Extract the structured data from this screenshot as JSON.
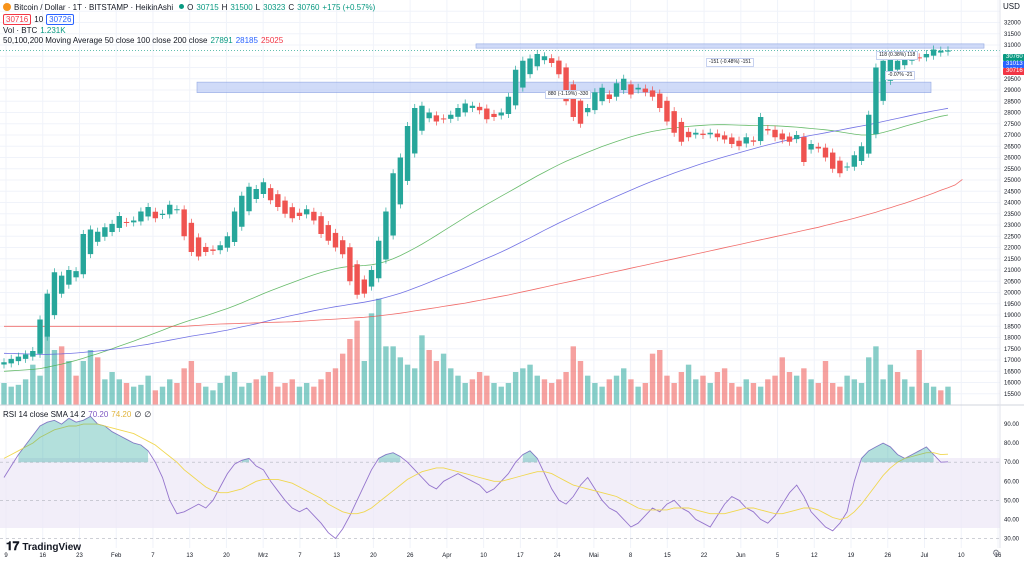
{
  "legend": {
    "symbol": "Bitcoin / Dollar · 1T · BITSTAMP · HeikinAshi",
    "open_label": "O",
    "open": "30715",
    "high_label": "H",
    "high": "31500",
    "low_label": "L",
    "low": "30323",
    "close_label": "C",
    "close": "30760",
    "change": "+175 (+0.57%)",
    "bid": "30716",
    "spread": "10",
    "ask": "30726",
    "vol_label": "Vol · BTC",
    "vol_value": "1.231K",
    "ma_label": "50,100,200 Moving Average 50 close 100 close 200 close",
    "ma50": "27891",
    "ma100": "28185",
    "ma200": "25025",
    "rsi_label": "RSI 14 close SMA 14 2",
    "rsi_value": "70.20",
    "rsi_sma": "74.20",
    "ma_sym1": "∅",
    "ma_sym2": "∅"
  },
  "currency": "USD",
  "brand": "TradingView",
  "price_tags": {
    "last": "30760",
    "a": "31013",
    "b": "30716"
  },
  "measures": {
    "m1": "-151 (-0.48%) -151",
    "m2": "880 (-1.19%) -330",
    "m3": "118 (0.38%) 118",
    "m4": "-0.07% -21"
  },
  "colors": {
    "up": "#26a69a",
    "down": "#ef5350",
    "ma50": "#4caf50",
    "ma100": "#5b5bdf",
    "ma200": "#ef5350",
    "rsi": "#9575cd",
    "rsi_sma": "#f0d750",
    "zone": "#b8c9f5"
  },
  "chart_data": [
    {
      "type": "candlestick",
      "title": "Bitcoin / Dollar · 1T · BITSTAMP · HeikinAshi",
      "xlabel": "",
      "ylabel": "USD",
      "x_ticks": [
        "9",
        "16",
        "23",
        "Feb",
        "7",
        "13",
        "20",
        "Mrz",
        "7",
        "13",
        "20",
        "26",
        "Apr",
        "10",
        "17",
        "24",
        "Mai",
        "8",
        "15",
        "22",
        "Jun",
        "5",
        "12",
        "19",
        "26",
        "Jul",
        "10",
        "16"
      ],
      "y_ticks": [
        15500,
        16000,
        16500,
        17000,
        17500,
        18000,
        18500,
        19000,
        19500,
        20000,
        20500,
        21000,
        21500,
        22000,
        22500,
        23000,
        23500,
        24000,
        24500,
        25000,
        25500,
        26000,
        26500,
        27000,
        27500,
        28000,
        28500,
        29000,
        29500,
        30000,
        30500,
        31000,
        31500,
        32000,
        32500
      ],
      "ylim": [
        15000,
        33000
      ],
      "close": [
        16900,
        17050,
        17150,
        17250,
        17400,
        18800,
        19950,
        20900,
        20750,
        21000,
        20950,
        22600,
        22800,
        22700,
        22900,
        23050,
        23400,
        23100,
        23200,
        23600,
        23800,
        23300,
        23500,
        23900,
        23700,
        22500,
        21800,
        21600,
        21800,
        21850,
        22100,
        22500,
        23600,
        24300,
        24700,
        24600,
        24900,
        24100,
        23800,
        23500,
        23300,
        23400,
        23700,
        23200,
        22600,
        22300,
        22000,
        21700,
        20500,
        19900,
        19950,
        21000,
        22300,
        23600,
        25300,
        26000,
        27400,
        28200,
        28300,
        28000,
        27600,
        27700,
        27900,
        28200,
        28400,
        28300,
        28100,
        27700,
        27800,
        28000,
        28700,
        29900,
        30300,
        30400,
        30600,
        30500,
        30200,
        29700,
        28500,
        27800,
        27500,
        28200,
        28900,
        29100,
        28600,
        29300,
        29500,
        28800,
        29100,
        28900,
        28700,
        28200,
        27600,
        27100,
        26700,
        26900,
        27100,
        27000,
        27100,
        26900,
        26800,
        26600,
        26500,
        26900,
        26700,
        27800,
        27200,
        26900,
        26800,
        26700,
        27000,
        25800,
        26600,
        26400,
        26000,
        25500,
        25300,
        25600,
        26100,
        26500,
        27900,
        30000,
        30300,
        30400,
        30300,
        30500,
        30600,
        30450,
        30600,
        30800,
        30750,
        30760
      ],
      "volume": [
        0.6,
        0.5,
        0.55,
        0.7,
        1.1,
        0.8,
        1.9,
        1.5,
        1.6,
        1.2,
        0.8,
        1.2,
        1.5,
        1.3,
        0.7,
        0.9,
        0.7,
        0.6,
        0.5,
        0.55,
        0.8,
        0.4,
        0.5,
        0.7,
        0.6,
        1.0,
        1.2,
        0.6,
        0.5,
        0.4,
        0.6,
        0.8,
        0.9,
        0.5,
        0.6,
        0.7,
        0.8,
        0.9,
        0.5,
        0.6,
        0.7,
        0.5,
        0.6,
        0.5,
        0.7,
        0.9,
        1.0,
        1.4,
        1.8,
        2.3,
        1.2,
        2.5,
        2.9,
        1.6,
        1.6,
        1.3,
        1.1,
        1.0,
        1.9,
        1.5,
        1.2,
        1.4,
        1.0,
        0.8,
        0.6,
        0.7,
        0.9,
        0.8,
        0.6,
        0.5,
        0.6,
        0.9,
        1.0,
        1.1,
        0.8,
        0.7,
        0.6,
        0.7,
        0.9,
        1.6,
        1.2,
        0.8,
        0.6,
        0.5,
        0.7,
        0.8,
        1.0,
        0.7,
        0.5,
        0.6,
        1.4,
        1.5,
        0.8,
        0.6,
        0.9,
        1.1,
        0.7,
        0.8,
        0.6,
        0.9,
        1.0,
        0.6,
        0.5,
        0.7,
        0.6,
        0.5,
        0.7,
        0.8,
        1.3,
        0.9,
        0.8,
        1.0,
        0.7,
        0.6,
        1.2,
        0.6,
        0.5,
        0.8,
        0.7,
        0.6,
        1.3,
        1.6,
        0.7,
        1.1,
        0.9,
        0.7,
        0.5,
        1.5,
        0.6,
        0.5,
        0.4,
        0.5
      ],
      "ma50": [
        16500,
        16520,
        16540,
        16560,
        16580,
        16620,
        16680,
        16750,
        16820,
        16900,
        16980,
        17080,
        17180,
        17280,
        17390,
        17500,
        17620,
        17730,
        17840,
        17960,
        18080,
        18200,
        18320,
        18450,
        18570,
        18680,
        18780,
        18870,
        18970,
        19070,
        19180,
        19290,
        19410,
        19540,
        19680,
        19810,
        19950,
        20080,
        20200,
        20320,
        20440,
        20560,
        20680,
        20790,
        20890,
        20980,
        21060,
        21120,
        21160,
        21180,
        21200,
        21230,
        21290,
        21380,
        21500,
        21640,
        21800,
        21970,
        22150,
        22340,
        22540,
        22740,
        22940,
        23140,
        23340,
        23540,
        23730,
        23920,
        24100,
        24280,
        24460,
        24640,
        24820,
        25000,
        25180,
        25350,
        25520,
        25680,
        25830,
        25970,
        26100,
        26230,
        26360,
        26490,
        26600,
        26710,
        26820,
        26920,
        27010,
        27090,
        27160,
        27220,
        27270,
        27310,
        27350,
        27380,
        27410,
        27430,
        27450,
        27460,
        27460,
        27450,
        27440,
        27430,
        27420,
        27420,
        27420,
        27410,
        27390,
        27370,
        27350,
        27320,
        27290,
        27260,
        27230,
        27190,
        27140,
        27090,
        27040,
        27000,
        27000,
        27040,
        27110,
        27200,
        27290,
        27390,
        27480,
        27570,
        27660,
        27750,
        27830,
        27891
      ],
      "ma100": [
        17300,
        17290,
        17280,
        17270,
        17260,
        17250,
        17250,
        17260,
        17270,
        17290,
        17310,
        17340,
        17370,
        17400,
        17430,
        17470,
        17510,
        17550,
        17600,
        17650,
        17700,
        17760,
        17820,
        17880,
        17940,
        18000,
        18060,
        18110,
        18160,
        18210,
        18270,
        18330,
        18400,
        18470,
        18540,
        18610,
        18690,
        18770,
        18840,
        18910,
        18980,
        19050,
        19120,
        19190,
        19250,
        19310,
        19370,
        19420,
        19470,
        19520,
        19570,
        19630,
        19700,
        19780,
        19870,
        19970,
        20080,
        20200,
        20320,
        20450,
        20580,
        20710,
        20840,
        20970,
        21100,
        21240,
        21380,
        21520,
        21660,
        21800,
        21950,
        22110,
        22270,
        22430,
        22600,
        22770,
        22930,
        23090,
        23240,
        23390,
        23540,
        23690,
        23840,
        23990,
        24130,
        24270,
        24410,
        24550,
        24690,
        24820,
        24950,
        25070,
        25190,
        25310,
        25420,
        25530,
        25640,
        25740,
        25840,
        25940,
        26030,
        26120,
        26210,
        26300,
        26390,
        26480,
        26560,
        26640,
        26720,
        26790,
        26860,
        26920,
        26980,
        27040,
        27100,
        27160,
        27220,
        27280,
        27340,
        27400,
        27460,
        27530,
        27600,
        27670,
        27740,
        27810,
        27880,
        27950,
        28010,
        28070,
        28130,
        28185
      ],
      "ma200": [
        18500,
        18500,
        18500,
        18500,
        18500,
        18500,
        18500,
        18500,
        18500,
        18500,
        18500,
        18500,
        18500,
        18500,
        18500,
        18500,
        18500,
        18500,
        18500,
        18500,
        18500,
        18500,
        18500,
        18500,
        18500,
        18500,
        18520,
        18540,
        18560,
        18580,
        18600,
        18610,
        18620,
        18630,
        18640,
        18650,
        18660,
        18670,
        18680,
        18690,
        18700,
        18720,
        18740,
        18760,
        18780,
        18800,
        18820,
        18840,
        18860,
        18880,
        18900,
        18930,
        18960,
        19000,
        19040,
        19080,
        19130,
        19180,
        19230,
        19280,
        19330,
        19380,
        19430,
        19480,
        19530,
        19590,
        19650,
        19710,
        19770,
        19830,
        19890,
        19960,
        20030,
        20100,
        20170,
        20240,
        20310,
        20380,
        20450,
        20520,
        20590,
        20660,
        20730,
        20800,
        20870,
        20940,
        21010,
        21080,
        21150,
        21220,
        21290,
        21360,
        21430,
        21500,
        21570,
        21640,
        21710,
        21780,
        21850,
        21920,
        21990,
        22060,
        22130,
        22200,
        22270,
        22340,
        22410,
        22480,
        22550,
        22620,
        22690,
        22760,
        22830,
        22900,
        22980,
        23060,
        23140,
        23220,
        23300,
        23390,
        23480,
        23570,
        23670,
        23770,
        23870,
        23970,
        24080,
        24190,
        24300,
        24420,
        24540,
        24660,
        24780,
        25025
      ]
    },
    {
      "type": "line",
      "title": "RSI 14 close SMA 14 2",
      "xlabel": "",
      "ylabel": "",
      "y_ticks": [
        30,
        40,
        50,
        60,
        70,
        80,
        90
      ],
      "ylim": [
        25,
        100
      ],
      "band": [
        30,
        70
      ],
      "series": [
        {
          "name": "RSI",
          "values": [
            62,
            68,
            74,
            79,
            84,
            89,
            91,
            92,
            90,
            93,
            91,
            92,
            94,
            90,
            89,
            86,
            84,
            82,
            80,
            79,
            76,
            70,
            62,
            50,
            43,
            44,
            46,
            48,
            46,
            50,
            57,
            64,
            69,
            71,
            72,
            68,
            66,
            60,
            55,
            50,
            46,
            44,
            46,
            42,
            38,
            33,
            30,
            35,
            42,
            50,
            58,
            66,
            72,
            74,
            75,
            73,
            70,
            66,
            62,
            58,
            56,
            60,
            62,
            64,
            62,
            60,
            58,
            54,
            56,
            60,
            64,
            70,
            74,
            76,
            72,
            64,
            56,
            50,
            48,
            52,
            58,
            62,
            56,
            50,
            46,
            44,
            40,
            36,
            38,
            42,
            46,
            44,
            48,
            50,
            46,
            44,
            40,
            38,
            36,
            42,
            48,
            52,
            50,
            46,
            44,
            40,
            38,
            42,
            48,
            54,
            58,
            52,
            44,
            40,
            36,
            34,
            38,
            44,
            60,
            72,
            76,
            78,
            80,
            78,
            74,
            72,
            74,
            76,
            78,
            74,
            70,
            70.2
          ]
        },
        {
          "name": "SMA",
          "values": [
            72,
            74,
            76,
            78,
            80,
            83,
            85,
            87,
            88,
            89,
            89,
            90,
            90,
            90,
            89,
            88,
            87,
            86,
            85,
            83,
            81,
            79,
            76,
            73,
            70,
            66,
            63,
            60,
            57,
            55,
            54,
            54,
            55,
            56,
            58,
            60,
            61,
            61,
            61,
            60,
            59,
            57,
            55,
            53,
            51,
            48,
            46,
            44,
            43,
            43,
            44,
            46,
            49,
            52,
            55,
            58,
            61,
            63,
            65,
            66,
            67,
            67,
            66,
            65,
            64,
            63,
            62,
            61,
            60,
            60,
            61,
            62,
            63,
            64,
            65,
            65,
            64,
            62,
            60,
            58,
            57,
            56,
            55,
            54,
            53,
            52,
            50,
            48,
            46,
            45,
            45,
            45,
            45,
            46,
            46,
            46,
            45,
            44,
            43,
            43,
            43,
            44,
            45,
            46,
            46,
            45,
            44,
            43,
            43,
            44,
            45,
            46,
            46,
            45,
            43,
            41,
            40,
            41,
            44,
            48,
            53,
            58,
            63,
            67,
            70,
            72,
            73,
            74,
            75,
            75,
            74,
            74.2
          ]
        }
      ]
    }
  ]
}
